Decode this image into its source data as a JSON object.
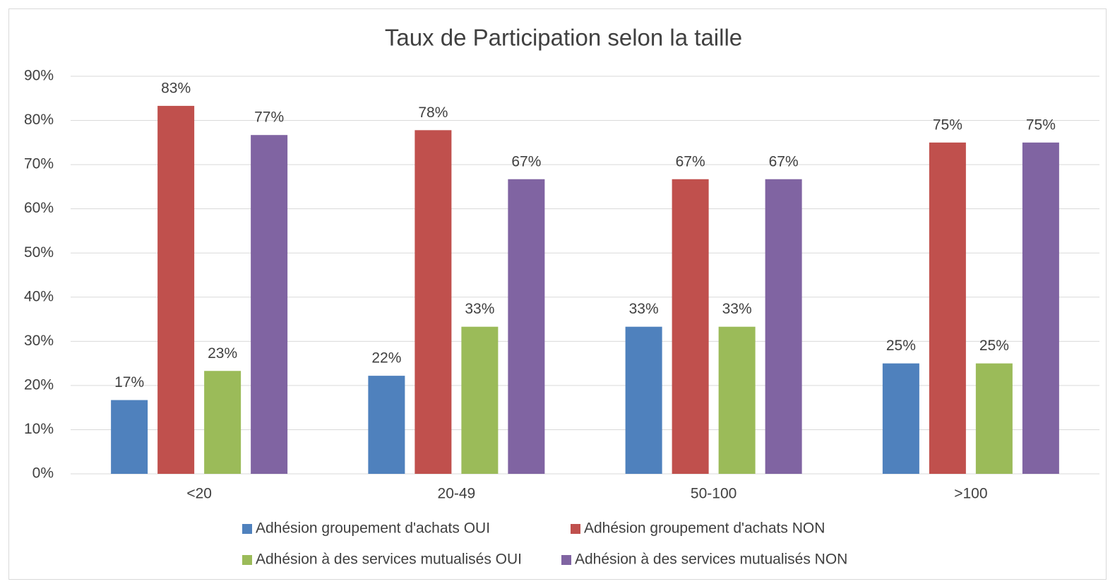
{
  "chart_data": {
    "type": "bar",
    "title": "Taux de Participation selon la taille",
    "categories": [
      "<20",
      "20-49",
      "50-100",
      ">100"
    ],
    "series": [
      {
        "name": "Adhésion groupement d'achats OUI",
        "color": "#4f81bd",
        "values": [
          16.7,
          22.2,
          33.3,
          25
        ],
        "value_labels": [
          "17%",
          "22%",
          "33%",
          "25%"
        ]
      },
      {
        "name": "Adhésion groupement d'achats NON",
        "color": "#c0504d",
        "values": [
          83.3,
          77.8,
          66.7,
          75
        ],
        "value_labels": [
          "83%",
          "78%",
          "67%",
          "75%"
        ]
      },
      {
        "name": "Adhésion à des services mutualisés OUI",
        "color": "#9bbb59",
        "values": [
          23.3,
          33.3,
          33.3,
          25
        ],
        "value_labels": [
          "23%",
          "33%",
          "33%",
          "25%"
        ]
      },
      {
        "name": "Adhésion à des services mutualisés NON",
        "color": "#8064a2",
        "values": [
          76.7,
          66.7,
          66.7,
          75
        ],
        "value_labels": [
          "77%",
          "67%",
          "67%",
          "75%"
        ]
      }
    ],
    "ylim": [
      0,
      90
    ],
    "yticks": [
      {
        "value": 0,
        "label": "0%"
      },
      {
        "value": 10,
        "label": "10%"
      },
      {
        "value": 20,
        "label": "20%"
      },
      {
        "value": 30,
        "label": "30%"
      },
      {
        "value": 40,
        "label": "40%"
      },
      {
        "value": 50,
        "label": "50%"
      },
      {
        "value": 60,
        "label": "60%"
      },
      {
        "value": 70,
        "label": "70%"
      },
      {
        "value": 80,
        "label": "80%"
      },
      {
        "value": 90,
        "label": "90%"
      }
    ],
    "grid": true,
    "legend": "bottom"
  }
}
